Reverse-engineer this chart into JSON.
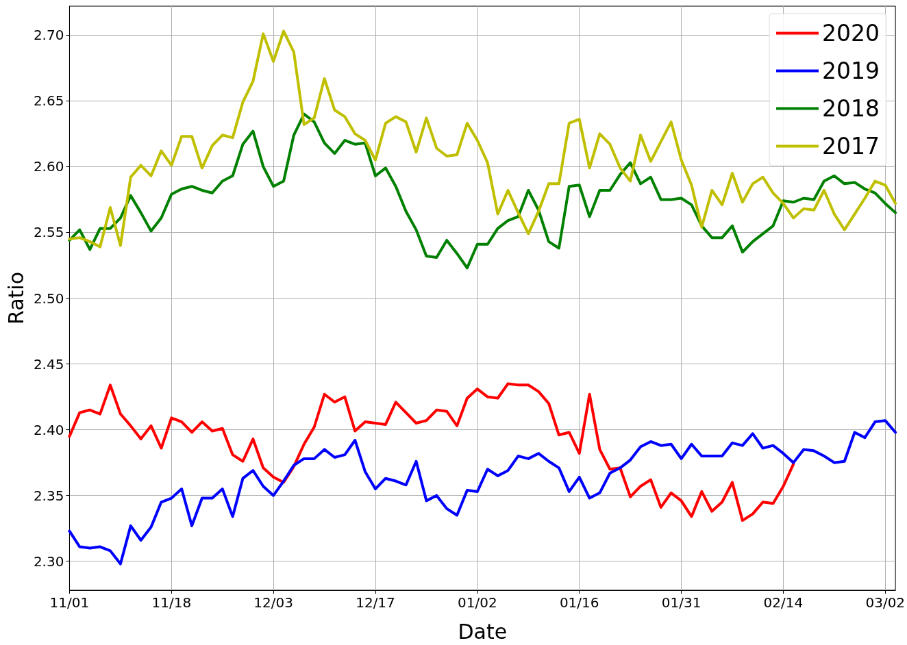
{
  "chart_data": {
    "type": "line",
    "xlabel": "Date",
    "ylabel": "Ratio",
    "categories": [
      "11/01",
      null,
      null,
      null,
      null,
      null,
      null,
      null,
      null,
      null,
      "11/18",
      null,
      null,
      null,
      null,
      null,
      null,
      null,
      null,
      null,
      "12/03",
      null,
      null,
      null,
      null,
      null,
      null,
      null,
      null,
      null,
      "12/17",
      null,
      null,
      null,
      null,
      null,
      null,
      null,
      null,
      null,
      "01/02",
      null,
      null,
      null,
      null,
      null,
      null,
      null,
      null,
      null,
      "01/16",
      null,
      null,
      null,
      null,
      null,
      null,
      null,
      null,
      null,
      "01/31",
      null,
      null,
      null,
      null,
      null,
      null,
      null,
      null,
      null,
      "02/14",
      null,
      null,
      null,
      null,
      null,
      null,
      null,
      null,
      null,
      "03/02",
      null
    ],
    "series": [
      {
        "name": "2020",
        "color": "#ff0000",
        "values": [
          2.395,
          2.413,
          2.415,
          2.412,
          2.434,
          2.412,
          2.403,
          2.393,
          2.403,
          2.386,
          2.409,
          2.406,
          2.398,
          2.406,
          2.399,
          2.401,
          2.381,
          2.376,
          2.393,
          2.371,
          2.364,
          2.36,
          2.372,
          2.389,
          2.402,
          2.427,
          2.421,
          2.425,
          2.399,
          2.406,
          2.405,
          2.404,
          2.421,
          2.413,
          2.405,
          2.407,
          2.415,
          2.414,
          2.403,
          2.424,
          2.431,
          2.425,
          2.424,
          2.435,
          2.434,
          2.434,
          2.429,
          2.42,
          2.396,
          2.398,
          2.382,
          2.427,
          2.385,
          2.37,
          2.371,
          2.349,
          2.357,
          2.362,
          2.341,
          2.352,
          2.346,
          2.334,
          2.353,
          2.338,
          2.345,
          2.36,
          2.331,
          2.336,
          2.345,
          2.344,
          2.357,
          2.374,
          null,
          null,
          null,
          null,
          null,
          null,
          null,
          null,
          null,
          null
        ]
      },
      {
        "name": "2019",
        "color": "#0000ff",
        "values": [
          2.323,
          2.311,
          2.31,
          2.311,
          2.308,
          2.298,
          2.327,
          2.316,
          2.326,
          2.345,
          2.348,
          2.355,
          2.327,
          2.348,
          2.348,
          2.355,
          2.334,
          2.363,
          2.369,
          2.357,
          2.35,
          2.361,
          2.373,
          2.378,
          2.378,
          2.385,
          2.379,
          2.381,
          2.392,
          2.368,
          2.355,
          2.363,
          2.361,
          2.358,
          2.376,
          2.346,
          2.35,
          2.34,
          2.335,
          2.354,
          2.353,
          2.37,
          2.365,
          2.369,
          2.38,
          2.378,
          2.382,
          2.376,
          2.371,
          2.353,
          2.364,
          2.348,
          2.352,
          2.367,
          2.371,
          2.377,
          2.387,
          2.391,
          2.388,
          2.389,
          2.378,
          2.389,
          2.38,
          2.38,
          2.38,
          2.39,
          2.388,
          2.397,
          2.386,
          2.388,
          2.382,
          2.375,
          2.385,
          2.384,
          2.38,
          2.375,
          2.376,
          2.398,
          2.394,
          2.406,
          2.407,
          2.398
        ]
      },
      {
        "name": "2018",
        "color": "#008000",
        "values": [
          2.544,
          2.552,
          2.537,
          2.553,
          2.553,
          2.561,
          2.578,
          2.565,
          2.551,
          2.561,
          2.579,
          2.583,
          2.585,
          2.582,
          2.58,
          2.589,
          2.593,
          2.617,
          2.627,
          2.6,
          2.585,
          2.589,
          2.624,
          2.64,
          2.634,
          2.618,
          2.61,
          2.62,
          2.617,
          2.618,
          2.593,
          2.599,
          2.585,
          2.566,
          2.552,
          2.532,
          2.531,
          2.544,
          2.534,
          2.523,
          2.541,
          2.541,
          2.553,
          2.559,
          2.562,
          2.582,
          2.567,
          2.543,
          2.538,
          2.585,
          2.586,
          2.562,
          2.582,
          2.582,
          2.594,
          2.603,
          2.587,
          2.592,
          2.575,
          2.575,
          2.576,
          2.571,
          2.555,
          2.546,
          2.546,
          2.555,
          2.535,
          2.543,
          2.549,
          2.555,
          2.574,
          2.573,
          2.576,
          2.575,
          2.589,
          2.593,
          2.587,
          2.588,
          2.583,
          2.58,
          2.572,
          2.565
        ]
      },
      {
        "name": "2017",
        "color": "#bfbf00",
        "values": [
          2.545,
          2.546,
          2.543,
          2.539,
          2.569,
          2.54,
          2.592,
          2.601,
          2.593,
          2.612,
          2.601,
          2.623,
          2.623,
          2.599,
          2.616,
          2.624,
          2.622,
          2.649,
          2.665,
          2.701,
          2.68,
          2.703,
          2.687,
          2.632,
          2.637,
          2.667,
          2.643,
          2.638,
          2.625,
          2.62,
          2.605,
          2.633,
          2.638,
          2.634,
          2.611,
          2.637,
          2.614,
          2.608,
          2.609,
          2.633,
          2.62,
          2.603,
          2.564,
          2.582,
          2.565,
          2.549,
          2.566,
          2.587,
          2.587,
          2.633,
          2.636,
          2.599,
          2.625,
          2.617,
          2.599,
          2.589,
          2.624,
          2.604,
          2.619,
          2.634,
          2.605,
          2.586,
          2.554,
          2.582,
          2.571,
          2.595,
          2.573,
          2.587,
          2.592,
          2.58,
          2.572,
          2.561,
          2.568,
          2.567,
          2.582,
          2.564,
          2.552,
          2.564,
          2.576,
          2.589,
          2.586,
          2.572
        ]
      }
    ],
    "ylim": [
      2.278,
      2.722
    ],
    "yticks": [
      {
        "value": 2.3,
        "label": "2.30"
      },
      {
        "value": 2.35,
        "label": "2.35"
      },
      {
        "value": 2.4,
        "label": "2.40"
      },
      {
        "value": 2.45,
        "label": "2.45"
      },
      {
        "value": 2.5,
        "label": "2.50"
      },
      {
        "value": 2.55,
        "label": "2.55"
      },
      {
        "value": 2.6,
        "label": "2.60"
      },
      {
        "value": 2.65,
        "label": "2.65"
      },
      {
        "value": 2.7,
        "label": "2.70"
      }
    ],
    "grid": true,
    "legend": "top right",
    "marker": "none",
    "line_style": "solid"
  }
}
